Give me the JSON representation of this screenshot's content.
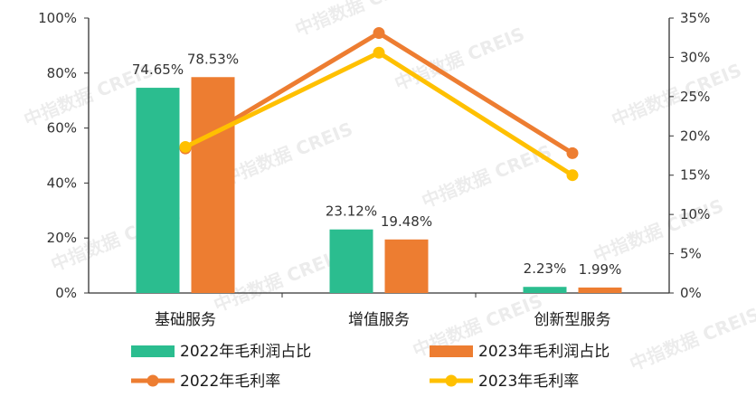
{
  "watermark": "中指数据 CREIS",
  "chart_data": {
    "type": "bar",
    "categories": [
      "基础服务",
      "增值服务",
      "创新型服务"
    ],
    "series": [
      {
        "name": "2022年毛利润占比",
        "kind": "bar",
        "axis": "left",
        "color": "#2bbd8f",
        "values": [
          74.65,
          23.12,
          2.23
        ],
        "labels": [
          "74.65%",
          "23.12%",
          "2.23%"
        ]
      },
      {
        "name": "2023年毛利润占比",
        "kind": "bar",
        "axis": "left",
        "color": "#ed7d31",
        "values": [
          78.53,
          19.48,
          1.99
        ],
        "labels": [
          "78.53%",
          "19.48%",
          "1.99%"
        ]
      },
      {
        "name": "2022年毛利率",
        "kind": "line",
        "axis": "right",
        "color": "#ed7d31",
        "values": [
          18.4,
          33.1,
          17.8
        ]
      },
      {
        "name": "2023年毛利率",
        "kind": "line",
        "axis": "right",
        "color": "#ffc000",
        "values": [
          18.6,
          30.6,
          15.0
        ]
      }
    ],
    "y_left": {
      "ylim": [
        0,
        100
      ],
      "ticks": [
        "0%",
        "20%",
        "40%",
        "60%",
        "80%",
        "100%"
      ]
    },
    "y_right": {
      "ylim": [
        0,
        35
      ],
      "ticks": [
        "0%",
        "5%",
        "10%",
        "15%",
        "20%",
        "25%",
        "30%",
        "35%"
      ]
    },
    "legend_position": "bottom",
    "grid": false
  }
}
